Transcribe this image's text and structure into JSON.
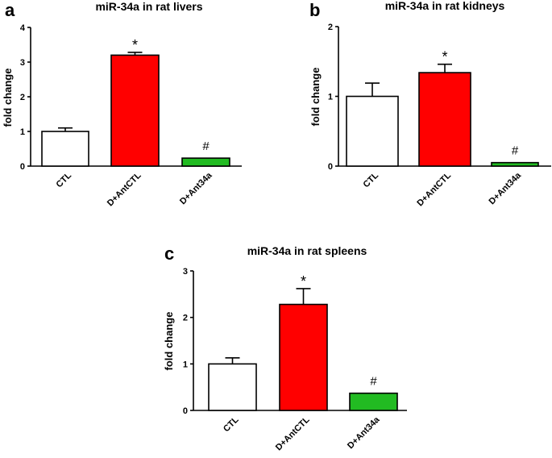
{
  "chart_data": [
    {
      "panel": "a",
      "type": "bar",
      "title": "miR-34a in rat livers",
      "ylabel": "fold change",
      "xlabel": "",
      "ylim": [
        0,
        4
      ],
      "yticks": [
        0,
        1,
        2,
        3,
        4
      ],
      "categories": [
        "CTL",
        "D+AntCTL",
        "D+Ant34a"
      ],
      "values": [
        1.0,
        3.2,
        0.23
      ],
      "errors": [
        0.1,
        0.08,
        0.0
      ],
      "colors": [
        "#ffffff",
        "#ff0000",
        "#22bb22"
      ],
      "annotations": [
        "",
        "*",
        "#"
      ]
    },
    {
      "panel": "b",
      "type": "bar",
      "title": "miR-34a in rat kidneys",
      "ylabel": "fold change",
      "xlabel": "",
      "ylim": [
        0,
        2
      ],
      "yticks": [
        0,
        1,
        2
      ],
      "categories": [
        "CTL",
        "D+AntCTL",
        "D+Ant34a"
      ],
      "values": [
        1.0,
        1.34,
        0.05
      ],
      "errors": [
        0.19,
        0.12,
        0.0
      ],
      "colors": [
        "#ffffff",
        "#ff0000",
        "#22bb22"
      ],
      "annotations": [
        "",
        "*",
        "#"
      ]
    },
    {
      "panel": "c",
      "type": "bar",
      "title": "miR-34a in rat spleens",
      "ylabel": "fold change",
      "xlabel": "",
      "ylim": [
        0,
        3
      ],
      "yticks": [
        0,
        1,
        2,
        3
      ],
      "categories": [
        "CTL",
        "D+AntCTL",
        "D+Ant34a"
      ],
      "values": [
        1.0,
        2.28,
        0.37
      ],
      "errors": [
        0.13,
        0.34,
        0.0
      ],
      "colors": [
        "#ffffff",
        "#ff0000",
        "#22bb22"
      ],
      "annotations": [
        "",
        "*",
        "#"
      ]
    }
  ]
}
